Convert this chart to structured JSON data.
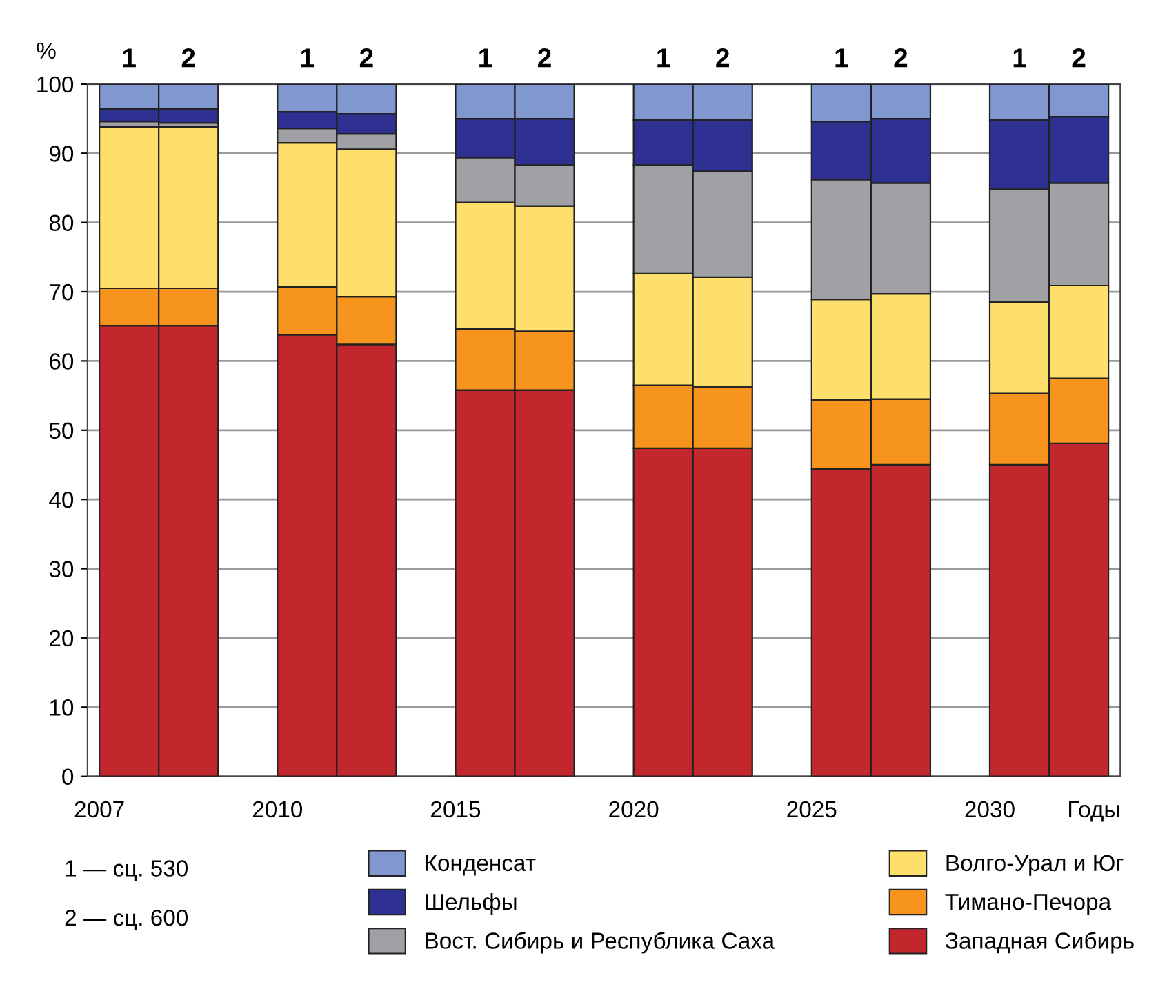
{
  "chart_data": {
    "type": "bar",
    "stacked": true,
    "ylabel": "%",
    "categories": [
      "1",
      "2",
      null,
      "1",
      "2",
      null,
      "1",
      "2",
      null,
      "1",
      "2",
      null,
      "1",
      "2",
      null,
      "1",
      "2"
    ],
    "series": [
      {
        "name": "Западная Сибирь",
        "color": "#c1272d",
        "values": [
          65.1,
          65.1,
          null,
          63.8,
          62.4,
          null,
          55.8,
          55.8,
          null,
          47.4,
          47.4,
          null,
          44.4,
          45.0,
          null,
          45.0,
          48.1
        ]
      },
      {
        "name": "Тимано-Печора",
        "color": "#f7941d",
        "values": [
          5.4,
          5.4,
          null,
          6.9,
          6.9,
          null,
          8.8,
          8.5,
          null,
          9.1,
          8.9,
          null,
          10.0,
          9.5,
          null,
          10.3,
          9.4
        ]
      },
      {
        "name": "Волго-Урал и Юг",
        "color": "#ffdf6b",
        "values": [
          23.3,
          23.3,
          null,
          20.8,
          21.3,
          null,
          18.3,
          18.1,
          null,
          16.1,
          15.8,
          null,
          14.5,
          15.2,
          null,
          13.2,
          13.4
        ]
      },
      {
        "name": "Вост. Сибирь и Республика Саха",
        "color": "#a0a0a5",
        "values": [
          0.8,
          0.6,
          null,
          2.1,
          2.2,
          null,
          6.5,
          5.9,
          null,
          15.7,
          15.3,
          null,
          17.3,
          16.0,
          null,
          16.3,
          14.8
        ]
      },
      {
        "name": "Шельфы",
        "color": "#2e3192",
        "values": [
          1.8,
          2.0,
          null,
          2.4,
          2.9,
          null,
          5.6,
          6.7,
          null,
          6.5,
          7.4,
          null,
          8.4,
          9.3,
          null,
          10.0,
          9.6
        ]
      },
      {
        "name": "Конденсат",
        "color": "#8098cf",
        "values": [
          3.6,
          3.6,
          null,
          4.0,
          4.3,
          null,
          5.0,
          5.0,
          null,
          5.2,
          5.2,
          null,
          5.4,
          5.0,
          null,
          5.2,
          4.7
        ]
      }
    ],
    "ylim": [
      0,
      100
    ],
    "yticks": [
      0,
      10,
      20,
      30,
      40,
      50,
      60,
      70,
      80,
      90,
      100
    ],
    "grid": "y",
    "legend": "bottom",
    "annotations": [
      "2007",
      "2010",
      "2015",
      "2020",
      "2025",
      "2030",
      "Годы",
      "1 — сц. 530",
      "2 — сц. 600"
    ]
  }
}
